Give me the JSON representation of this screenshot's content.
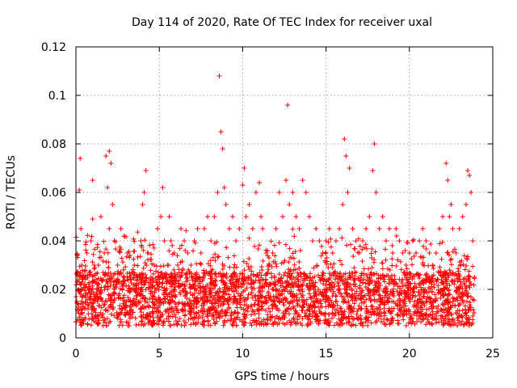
{
  "chart_data": {
    "type": "scatter",
    "title": "Day 114 of 2020, Rate Of TEC Index for receiver uxal",
    "xlabel": "GPS time / hours",
    "ylabel": "ROTI / TECUs",
    "xlim": [
      0,
      25
    ],
    "ylim": [
      0,
      0.12
    ],
    "xticks": [
      0,
      5,
      10,
      15,
      20,
      25
    ],
    "yticks": [
      0,
      0.02,
      0.04,
      0.06,
      0.08,
      0.1,
      0.12
    ],
    "xtick_labels": [
      "0",
      "5",
      "10",
      "15",
      "20",
      "25"
    ],
    "ytick_labels": [
      "0",
      "0.02",
      "0.04",
      "0.06",
      "0.08",
      "0.1",
      "0.12"
    ],
    "grid": true,
    "marker": "+",
    "color": "#ff0000",
    "series": [
      {
        "x": [
          0.05,
          0.1,
          0.15,
          0.2,
          0.25,
          0.3,
          0.3,
          0.35,
          0.5,
          0.7,
          0.9,
          1.0,
          1.0,
          1.1,
          1.3,
          1.5,
          1.7,
          1.8,
          1.9,
          2.0,
          2.0,
          2.1,
          2.2,
          2.3,
          2.5,
          2.7,
          2.9,
          3.1,
          3.3,
          3.5,
          3.7,
          3.9,
          4.0,
          4.1,
          4.2,
          4.3,
          4.5,
          4.7,
          4.9,
          5.1,
          5.2,
          5.3,
          5.5,
          5.6,
          5.7,
          5.9,
          6.1,
          6.3,
          6.5,
          6.7,
          6.9,
          7.1,
          7.3,
          7.5,
          7.7,
          7.9,
          8.1,
          8.3,
          8.5,
          8.6,
          8.7,
          8.8,
          8.9,
          9.0,
          9.2,
          9.4,
          9.6,
          9.8,
          10.0,
          10.1,
          10.2,
          10.4,
          10.6,
          10.8,
          11.0,
          11.1,
          11.2,
          11.4,
          11.6,
          11.8,
          12.0,
          12.2,
          12.4,
          12.6,
          12.7,
          12.8,
          13.0,
          13.2,
          13.4,
          13.6,
          13.8,
          14.0,
          14.2,
          14.4,
          14.6,
          14.8,
          15.0,
          15.2,
          15.4,
          15.6,
          15.8,
          16.0,
          16.1,
          16.2,
          16.3,
          16.4,
          16.6,
          16.8,
          17.0,
          17.2,
          17.4,
          17.6,
          17.8,
          17.9,
          18.0,
          18.2,
          18.4,
          18.6,
          18.8,
          19.0,
          19.2,
          19.4,
          19.6,
          19.8,
          20.0,
          20.2,
          20.4,
          20.6,
          20.8,
          21.0,
          21.2,
          21.4,
          21.6,
          21.8,
          22.0,
          22.2,
          22.3,
          22.4,
          22.5,
          22.6,
          22.8,
          23.0,
          23.2,
          23.4,
          23.5,
          23.6,
          23.7,
          23.8,
          23.9
        ],
        "y": [
          0.015,
          0.034,
          0.02,
          0.061,
          0.074,
          0.045,
          0.012,
          0.03,
          0.025,
          0.018,
          0.04,
          0.049,
          0.065,
          0.03,
          0.022,
          0.05,
          0.035,
          0.075,
          0.062,
          0.077,
          0.045,
          0.072,
          0.055,
          0.04,
          0.03,
          0.045,
          0.025,
          0.035,
          0.02,
          0.03,
          0.025,
          0.04,
          0.055,
          0.06,
          0.069,
          0.035,
          0.025,
          0.03,
          0.045,
          0.05,
          0.062,
          0.04,
          0.03,
          0.05,
          0.04,
          0.035,
          0.03,
          0.045,
          0.04,
          0.035,
          0.03,
          0.04,
          0.045,
          0.035,
          0.045,
          0.05,
          0.04,
          0.05,
          0.06,
          0.108,
          0.085,
          0.078,
          0.062,
          0.055,
          0.045,
          0.05,
          0.04,
          0.045,
          0.063,
          0.07,
          0.05,
          0.055,
          0.045,
          0.06,
          0.064,
          0.05,
          0.045,
          0.035,
          0.03,
          0.035,
          0.045,
          0.06,
          0.05,
          0.065,
          0.096,
          0.055,
          0.06,
          0.05,
          0.045,
          0.065,
          0.06,
          0.05,
          0.04,
          0.045,
          0.04,
          0.035,
          0.04,
          0.045,
          0.035,
          0.04,
          0.045,
          0.055,
          0.082,
          0.075,
          0.06,
          0.07,
          0.045,
          0.04,
          0.035,
          0.04,
          0.045,
          0.05,
          0.069,
          0.08,
          0.06,
          0.045,
          0.05,
          0.04,
          0.045,
          0.035,
          0.045,
          0.04,
          0.035,
          0.03,
          0.035,
          0.04,
          0.035,
          0.04,
          0.045,
          0.04,
          0.035,
          0.03,
          0.035,
          0.045,
          0.05,
          0.072,
          0.065,
          0.05,
          0.055,
          0.045,
          0.035,
          0.045,
          0.05,
          0.055,
          0.069,
          0.067,
          0.06,
          0.04,
          0.025
        ]
      }
    ]
  }
}
